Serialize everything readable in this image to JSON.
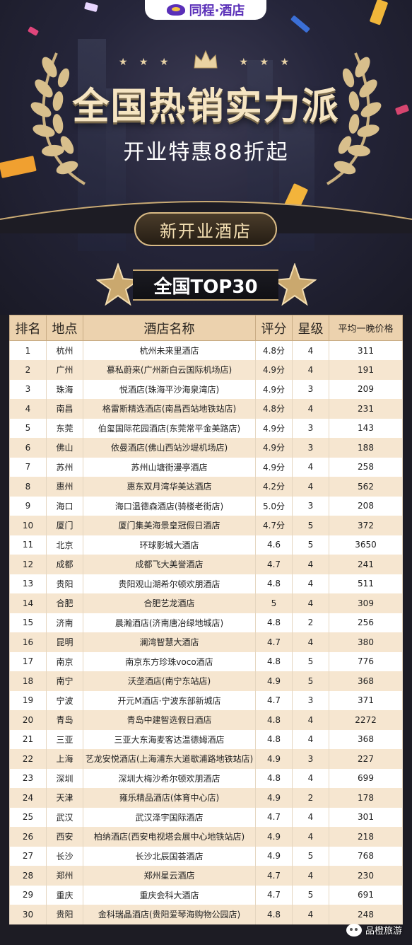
{
  "header": {
    "logo_text": "同程·酒店",
    "title": "全国热销实力派",
    "subtitle": "开业特惠88折起",
    "badge": "新开业酒店",
    "top_label": "全国TOP30"
  },
  "table": {
    "columns": [
      "排名",
      "地点",
      "酒店名称",
      "评分",
      "星级",
      "平均一晚价格"
    ],
    "rows": [
      [
        "1",
        "杭州",
        "杭州未来里酒店",
        "4.8分",
        "4",
        "311"
      ],
      [
        "2",
        "广州",
        "慕私蔚来(广州新白云国际机场店)",
        "4.9分",
        "4",
        "191"
      ],
      [
        "3",
        "珠海",
        "悦酒店(珠海平沙海泉湾店)",
        "4.9分",
        "3",
        "209"
      ],
      [
        "4",
        "南昌",
        "格雷斯精选酒店(南昌西站地铁站店)",
        "4.8分",
        "4",
        "231"
      ],
      [
        "5",
        "东莞",
        "伯玺国际花园酒店(东莞常平金美路店)",
        "4.9分",
        "3",
        "143"
      ],
      [
        "6",
        "佛山",
        "依曼酒店(佛山西站沙堤机场店)",
        "4.9分",
        "3",
        "188"
      ],
      [
        "7",
        "苏州",
        "苏州山塘街漫亭酒店",
        "4.9分",
        "4",
        "258"
      ],
      [
        "8",
        "惠州",
        "惠东双月湾华美达酒店",
        "4.2分",
        "4",
        "562"
      ],
      [
        "9",
        "海口",
        "海口温德森酒店(骑楼老街店)",
        "5.0分",
        "3",
        "208"
      ],
      [
        "10",
        "厦门",
        "厦门集美海景皇冠假日酒店",
        "4.7分",
        "5",
        "372"
      ],
      [
        "11",
        "北京",
        "环球影城大酒店",
        "4.6",
        "5",
        "3650"
      ],
      [
        "12",
        "成都",
        "成都飞大美誉酒店",
        "4.7",
        "4",
        "241"
      ],
      [
        "13",
        "贵阳",
        "贵阳观山湖希尔顿欢朋酒店",
        "4.8",
        "4",
        "511"
      ],
      [
        "14",
        "合肥",
        "合肥艺龙酒店",
        "5",
        "4",
        "309"
      ],
      [
        "15",
        "济南",
        "晨瀚酒店(济南唐冶绿地城店)",
        "4.8",
        "2",
        "256"
      ],
      [
        "16",
        "昆明",
        "澜湾智慧大酒店",
        "4.7",
        "4",
        "380"
      ],
      [
        "17",
        "南京",
        "南京东方珍珠voco酒店",
        "4.8",
        "5",
        "776"
      ],
      [
        "18",
        "南宁",
        "沃垄酒店(南宁东站店)",
        "4.9",
        "5",
        "368"
      ],
      [
        "19",
        "宁波",
        "开元M酒店·宁波东部新城店",
        "4.7",
        "3",
        "371"
      ],
      [
        "20",
        "青岛",
        "青岛中建智选假日酒店",
        "4.8",
        "4",
        "2272"
      ],
      [
        "21",
        "三亚",
        "三亚大东海麦客达温德姆酒店",
        "4.8",
        "4",
        "368"
      ],
      [
        "22",
        "上海",
        "艺龙安悦酒店(上海浦东大道歇浦路地铁站店)",
        "4.9",
        "3",
        "227"
      ],
      [
        "23",
        "深圳",
        "深圳大梅沙希尔顿欢朋酒店",
        "4.8",
        "4",
        "699"
      ],
      [
        "24",
        "天津",
        "雍乐精品酒店(体育中心店)",
        "4.9",
        "2",
        "178"
      ],
      [
        "25",
        "武汉",
        "武汉泽宇国际酒店",
        "4.7",
        "4",
        "301"
      ],
      [
        "26",
        "西安",
        "柏纳酒店(西安电视塔会展中心地铁站店)",
        "4.9",
        "4",
        "218"
      ],
      [
        "27",
        "长沙",
        "长沙北辰国荟酒店",
        "4.9",
        "5",
        "768"
      ],
      [
        "28",
        "郑州",
        "郑州星云酒店",
        "4.7",
        "4",
        "230"
      ],
      [
        "29",
        "重庆",
        "重庆会科大酒店",
        "4.7",
        "5",
        "691"
      ],
      [
        "30",
        "贵阳",
        "金科瑞晶酒店(贵阳爱琴海购物公园店)",
        "4.8",
        "4",
        "248"
      ]
    ]
  },
  "watermark": "品橙旅游",
  "colors": {
    "gold": "#ecd2ae",
    "row_alt": "#f6e6d0",
    "brand_purple": "#5a2fb8"
  }
}
